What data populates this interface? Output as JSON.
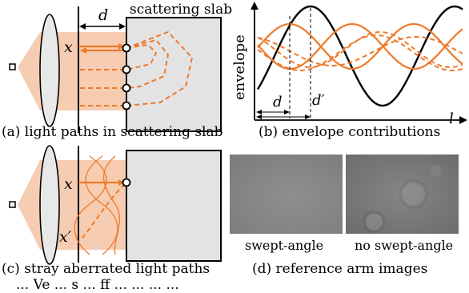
{
  "panel_a": {
    "caption": "(a) light paths in scattering slab",
    "slab_label": "scattering slab",
    "d_label": "d",
    "x_label": "x"
  },
  "panel_b": {
    "caption": "(b) envelope contributions",
    "ylabel": "envelope",
    "xlabel": "l",
    "d_label": "d",
    "d_prime_label": "d′"
  },
  "panel_c": {
    "caption": "(c) stray aberrated light paths",
    "x_label": "x",
    "x_prime_label": "x′"
  },
  "panel_d": {
    "caption": "(d) reference arm images",
    "left_label": "swept-angle",
    "right_label": "no swept-angle"
  },
  "colors": {
    "orange": "#ee7a2a",
    "beam": "#f6cdb2",
    "slab": "#e3e3e3",
    "black": "#000000"
  },
  "bottom_cut_text": "... Ve ... s ... ff ... ... ... ..."
}
